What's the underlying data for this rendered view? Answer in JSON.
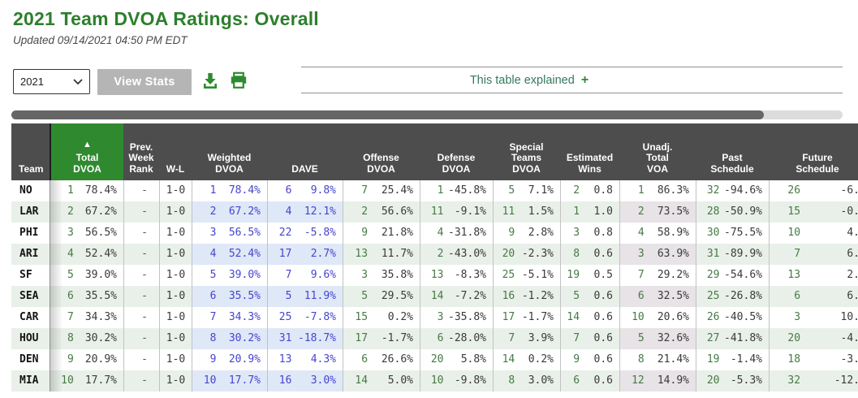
{
  "header": {
    "title": "2021 Team DVOA Ratings: Overall",
    "updated": "Updated 09/14/2021 04:50 PM EDT"
  },
  "toolbar": {
    "year_value": "2021",
    "view_stats_label": "View Stats",
    "explained_label": "This table explained",
    "explained_plus": "+"
  },
  "colors": {
    "title_green": "#2d7f2d",
    "accent_green": "#2e8b2e",
    "header_gray": "#4d4d4d",
    "sorted_header_green": "#2f8a2f",
    "rank_green": "#467a46",
    "blue_text": "#4545cf",
    "stripe_green": "#e9f0e9",
    "stripe_blue": "#dfe8f7",
    "stripe_gray": "#e7e3e6"
  },
  "table": {
    "sort_arrow": "▲",
    "sorted_column": "Total DVOA",
    "headers": {
      "team": "Team",
      "total": "Total\nDVOA",
      "prev": "Prev.\nWeek\nRank",
      "wl": "W-L",
      "weighted": "Weighted\nDVOA",
      "dave": "DAVE",
      "offense": "Offense\nDVOA",
      "defense": "Defense\nDVOA",
      "st": "Special\nTeams\nDVOA",
      "est_wins": "Estimated\nWins",
      "unadj": "Unadj.\nTotal\nVOA",
      "past": "Past\nSchedule",
      "future": "Future\nSchedule"
    },
    "rows": [
      {
        "team": "NO",
        "total": [
          "1",
          "78.4%"
        ],
        "prev": "-",
        "wl": "1-0",
        "weighted": [
          "1",
          "78.4%"
        ],
        "dave": [
          "6",
          "9.8%"
        ],
        "offense": [
          "7",
          "25.4%"
        ],
        "defense": [
          "1",
          "-45.8%"
        ],
        "st": [
          "5",
          "7.1%"
        ],
        "est_wins": [
          "2",
          "0.8"
        ],
        "unadj": [
          "1",
          "86.3%"
        ],
        "past": [
          "32",
          "-94.6%"
        ],
        "future": [
          "26",
          "-6."
        ]
      },
      {
        "team": "LAR",
        "total": [
          "2",
          "67.2%"
        ],
        "prev": "-",
        "wl": "1-0",
        "weighted": [
          "2",
          "67.2%"
        ],
        "dave": [
          "4",
          "12.1%"
        ],
        "offense": [
          "2",
          "56.6%"
        ],
        "defense": [
          "11",
          "-9.1%"
        ],
        "st": [
          "11",
          "1.5%"
        ],
        "est_wins": [
          "1",
          "1.0"
        ],
        "unadj": [
          "2",
          "73.5%"
        ],
        "past": [
          "28",
          "-50.9%"
        ],
        "future": [
          "15",
          "-0."
        ]
      },
      {
        "team": "PHI",
        "total": [
          "3",
          "56.5%"
        ],
        "prev": "-",
        "wl": "1-0",
        "weighted": [
          "3",
          "56.5%"
        ],
        "dave": [
          "22",
          "-5.8%"
        ],
        "offense": [
          "9",
          "21.8%"
        ],
        "defense": [
          "4",
          "-31.8%"
        ],
        "st": [
          "9",
          "2.8%"
        ],
        "est_wins": [
          "3",
          "0.8"
        ],
        "unadj": [
          "4",
          "58.9%"
        ],
        "past": [
          "30",
          "-75.5%"
        ],
        "future": [
          "10",
          "4."
        ]
      },
      {
        "team": "ARI",
        "total": [
          "4",
          "52.4%"
        ],
        "prev": "-",
        "wl": "1-0",
        "weighted": [
          "4",
          "52.4%"
        ],
        "dave": [
          "17",
          "2.7%"
        ],
        "offense": [
          "13",
          "11.7%"
        ],
        "defense": [
          "2",
          "-43.0%"
        ],
        "st": [
          "20",
          "-2.3%"
        ],
        "est_wins": [
          "8",
          "0.6"
        ],
        "unadj": [
          "3",
          "63.9%"
        ],
        "past": [
          "31",
          "-89.9%"
        ],
        "future": [
          "7",
          "6."
        ]
      },
      {
        "team": "SF",
        "total": [
          "5",
          "39.0%"
        ],
        "prev": "-",
        "wl": "1-0",
        "weighted": [
          "5",
          "39.0%"
        ],
        "dave": [
          "7",
          "9.6%"
        ],
        "offense": [
          "3",
          "35.8%"
        ],
        "defense": [
          "13",
          "-8.3%"
        ],
        "st": [
          "25",
          "-5.1%"
        ],
        "est_wins": [
          "19",
          "0.5"
        ],
        "unadj": [
          "7",
          "29.2%"
        ],
        "past": [
          "29",
          "-54.6%"
        ],
        "future": [
          "13",
          "2."
        ]
      },
      {
        "team": "SEA",
        "total": [
          "6",
          "35.5%"
        ],
        "prev": "-",
        "wl": "1-0",
        "weighted": [
          "6",
          "35.5%"
        ],
        "dave": [
          "5",
          "11.9%"
        ],
        "offense": [
          "5",
          "29.5%"
        ],
        "defense": [
          "14",
          "-7.2%"
        ],
        "st": [
          "16",
          "-1.2%"
        ],
        "est_wins": [
          "5",
          "0.6"
        ],
        "unadj": [
          "6",
          "32.5%"
        ],
        "past": [
          "25",
          "-26.8%"
        ],
        "future": [
          "6",
          "6."
        ]
      },
      {
        "team": "CAR",
        "total": [
          "7",
          "34.3%"
        ],
        "prev": "-",
        "wl": "1-0",
        "weighted": [
          "7",
          "34.3%"
        ],
        "dave": [
          "25",
          "-7.8%"
        ],
        "offense": [
          "15",
          "0.2%"
        ],
        "defense": [
          "3",
          "-35.8%"
        ],
        "st": [
          "17",
          "-1.7%"
        ],
        "est_wins": [
          "14",
          "0.6"
        ],
        "unadj": [
          "10",
          "20.6%"
        ],
        "past": [
          "26",
          "-40.5%"
        ],
        "future": [
          "3",
          "10."
        ]
      },
      {
        "team": "HOU",
        "total": [
          "8",
          "30.2%"
        ],
        "prev": "-",
        "wl": "1-0",
        "weighted": [
          "8",
          "30.2%"
        ],
        "dave": [
          "31",
          "-18.7%"
        ],
        "offense": [
          "17",
          "-1.7%"
        ],
        "defense": [
          "6",
          "-28.0%"
        ],
        "st": [
          "7",
          "3.9%"
        ],
        "est_wins": [
          "7",
          "0.6"
        ],
        "unadj": [
          "5",
          "32.6%"
        ],
        "past": [
          "27",
          "-41.8%"
        ],
        "future": [
          "20",
          "-4."
        ]
      },
      {
        "team": "DEN",
        "total": [
          "9",
          "20.9%"
        ],
        "prev": "-",
        "wl": "1-0",
        "weighted": [
          "9",
          "20.9%"
        ],
        "dave": [
          "13",
          "4.3%"
        ],
        "offense": [
          "6",
          "26.6%"
        ],
        "defense": [
          "20",
          "5.8%"
        ],
        "st": [
          "14",
          "0.2%"
        ],
        "est_wins": [
          "9",
          "0.6"
        ],
        "unadj": [
          "8",
          "21.4%"
        ],
        "past": [
          "19",
          "-1.4%"
        ],
        "future": [
          "18",
          "-3."
        ]
      },
      {
        "team": "MIA",
        "total": [
          "10",
          "17.7%"
        ],
        "prev": "-",
        "wl": "1-0",
        "weighted": [
          "10",
          "17.7%"
        ],
        "dave": [
          "16",
          "3.0%"
        ],
        "offense": [
          "14",
          "5.0%"
        ],
        "defense": [
          "10",
          "-9.8%"
        ],
        "st": [
          "8",
          "3.0%"
        ],
        "est_wins": [
          "6",
          "0.6"
        ],
        "unadj": [
          "12",
          "14.9%"
        ],
        "past": [
          "20",
          "-5.3%"
        ],
        "future": [
          "32",
          "-12."
        ]
      }
    ]
  }
}
